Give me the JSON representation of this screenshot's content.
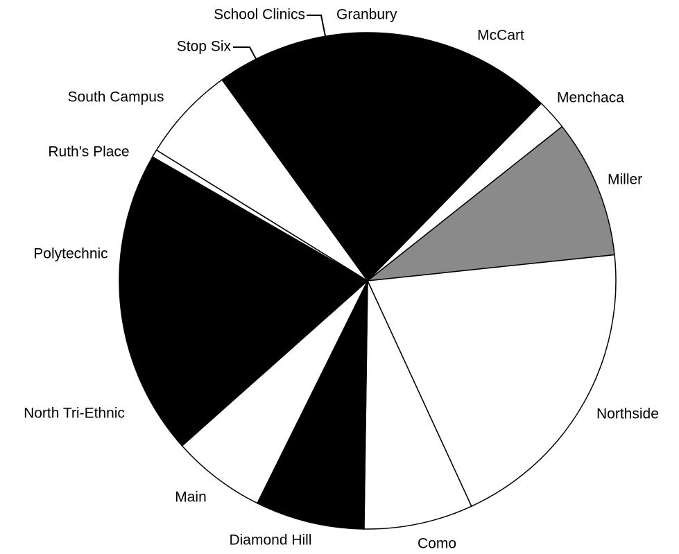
{
  "chart_data": {
    "type": "pie",
    "categories": [
      "Granbury",
      "McCart",
      "Menchaca",
      "Miller",
      "Northside",
      "Como",
      "Diamond Hill",
      "Main",
      "North Tri-Ethnic",
      "Polytechnic",
      "Ruth's Place",
      "South Campus",
      "Stop Six",
      "School Clinics"
    ],
    "values": [
      0.5,
      20.3,
      2.0,
      9.0,
      19.8,
      7.1,
      7.1,
      6.1,
      0.5,
      19.4,
      0.5,
      6.2,
      1.0,
      0.5
    ],
    "colors": [
      "#000000",
      "#000000",
      "#ffffff",
      "#8a8a8a",
      "#ffffff",
      "#ffffff",
      "#000000",
      "#ffffff",
      "#000000",
      "#000000",
      "#ffffff",
      "#ffffff",
      "#000000",
      "#000000"
    ]
  }
}
